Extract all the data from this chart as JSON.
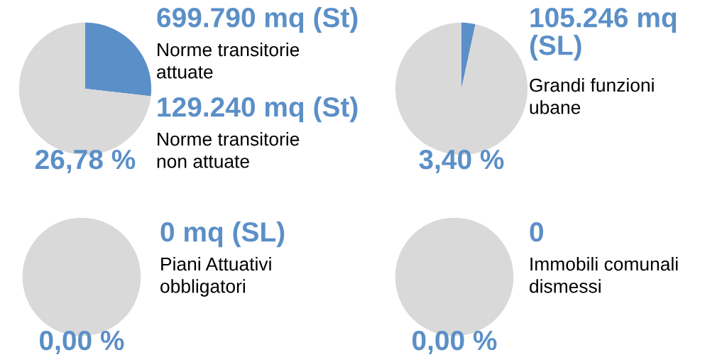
{
  "chart_data": [
    {
      "type": "pie",
      "categories": [
        null,
        null
      ],
      "values": [
        26.78,
        73.22
      ],
      "colors": [
        "#5b8fc7",
        "#d9d9d9"
      ],
      "annotations": [
        "26,78 %",
        "699.790 mq (St)",
        "Norme transitorie\nattuate",
        "129.240 mq (St)",
        "Norme transitorie\nnon attuate"
      ]
    },
    {
      "type": "pie",
      "categories": [
        null,
        null
      ],
      "values": [
        3.4,
        96.6
      ],
      "colors": [
        "#5b8fc7",
        "#d9d9d9"
      ],
      "annotations": [
        "3,40 %",
        "105.246 mq\n(SL)",
        "Grandi funzioni\nubane"
      ]
    },
    {
      "type": "pie",
      "categories": [
        null,
        null
      ],
      "values": [
        0,
        100
      ],
      "colors": [
        "#5b8fc7",
        "#d9d9d9"
      ],
      "annotations": [
        "0,00 %",
        "0 mq (SL)",
        "Piani Attuativi\nobbligatori"
      ]
    },
    {
      "type": "pie",
      "categories": [
        null,
        null
      ],
      "values": [
        0,
        100
      ],
      "colors": [
        "#5b8fc7",
        "#d9d9d9"
      ],
      "annotations": [
        "0,00 %",
        "0",
        "Immobili comunali\ndismessi"
      ]
    }
  ]
}
